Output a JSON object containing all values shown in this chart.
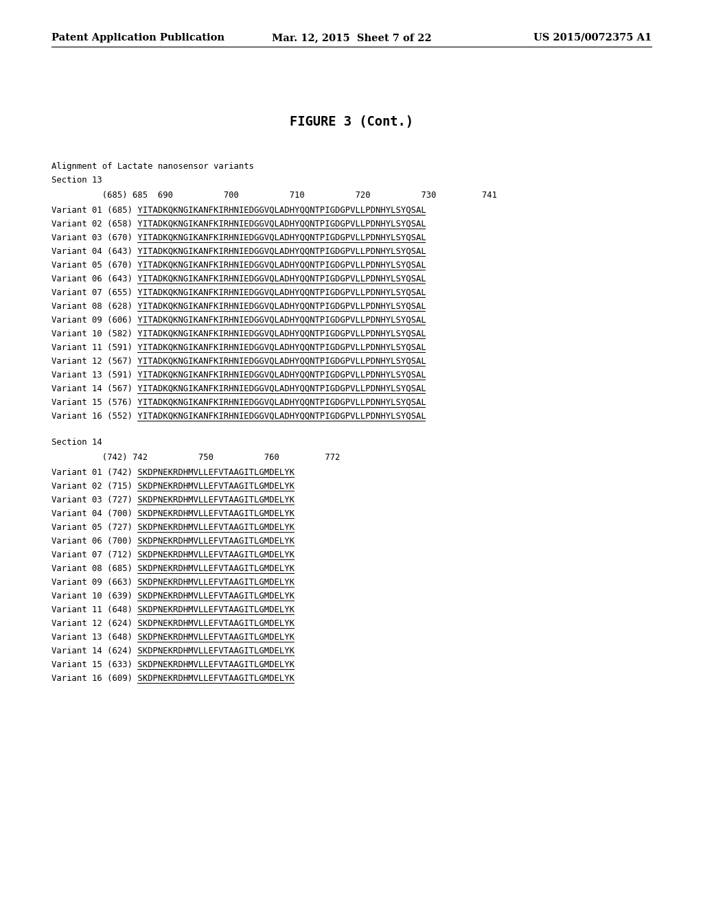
{
  "background_color": "#ffffff",
  "header_left": "Patent Application Publication",
  "header_mid": "Mar. 12, 2015  Sheet 7 of 22",
  "header_right": "US 2015/0072375 A1",
  "figure_title": "FIGURE 3 (Cont.)",
  "intro_line1": "Alignment of Lactate nanosensor variants",
  "sec13_label": "Section 13",
  "sec13_ruler": "          (685) 685  690          700          710          720          730         741",
  "sec13_variants": [
    [
      "Variant 01 (685) ",
      "YITADKQKNGIKANFKIRHNIEDGGVQLADHYQQNTPIGDGPVLLPDNHYLSYQSAL"
    ],
    [
      "Variant 02 (658) ",
      "YITADKQKNGIKANFKIRHNIEDGGVQLADHYQQNTPIGDGPVLLPDNHYLSYQSAL"
    ],
    [
      "Variant 03 (670) ",
      "YITADKQKNGIKANFKIRHNIEDGGVQLADHYQQNTPIGDGPVLLPDNHYLSYQSAL"
    ],
    [
      "Variant 04 (643) ",
      "YITADKQKNGIKANFKIRHNIEDGGVQLADHYQQNTPIGDGPVLLPDNHYLSYQSAL"
    ],
    [
      "Variant 05 (670) ",
      "YITADKQKNGIKANFKIRHNIEDGGVQLADHYQQNTPIGDGPVLLPDNHYLSYQSAL"
    ],
    [
      "Variant 06 (643) ",
      "YITADKQKNGIKANFKIRHNIEDGGVQLADHYQQNTPIGDGPVLLPDNHYLSYQSAL"
    ],
    [
      "Variant 07 (655) ",
      "YITADKQKNGIKANFKIRHNIEDGGVQLADHYQQNTPIGDGPVLLPDNHYLSYQSAL"
    ],
    [
      "Variant 08 (628) ",
      "YITADKQKNGIKANFKIRHNIEDGGVQLADHYQQNTPIGDGPVLLPDNHYLSYQSAL"
    ],
    [
      "Variant 09 (606) ",
      "YITADKQKNGIKANFKIRHNIEDGGVQLADHYQQNTPIGDGPVLLPDNHYLSYQSAL"
    ],
    [
      "Variant 10 (582) ",
      "YITADKQKNGIKANFKIRHNIEDGGVQLADHYQQNTPIGDGPVLLPDNHYLSYQSAL"
    ],
    [
      "Variant 11 (591) ",
      "YITADKQKNGIKANFKIRHNIEDGGVQLADHYQQNTPIGDGPVLLPDNHYLSYQSAL"
    ],
    [
      "Variant 12 (567) ",
      "YITADKQKNGIKANFKIRHNIEDGGVQLADHYQQNTPIGDGPVLLPDNHYLSYQSAL"
    ],
    [
      "Variant 13 (591) ",
      "YITADKQKNGIKANFKIRHNIEDGGVQLADHYQQNTPIGDGPVLLPDNHYLSYQSAL"
    ],
    [
      "Variant 14 (567) ",
      "YITADKQKNGIKANFKIRHNIEDGGVQLADHYQQNTPIGDGPVLLPDNHYLSYQSAL"
    ],
    [
      "Variant 15 (576) ",
      "YITADKQKNGIKANFKIRHNIEDGGVQLADHYQQNTPIGDGPVLLPDNHYLSYQSAL"
    ],
    [
      "Variant 16 (552) ",
      "YITADKQKNGIKANFKIRHNIEDGGVQLADHYQQNTPIGDGPVLLPDNHYLSYQSAL"
    ]
  ],
  "sec14_label": "Section 14",
  "sec14_ruler": "          (742) 742          750          760         772",
  "sec14_variants": [
    [
      "Variant 01 (742) ",
      "SKDPNEKRDHMVLLEFVTAAGITLGMDELYK"
    ],
    [
      "Variant 02 (715) ",
      "SKDPNEKRDHMVLLEFVTAAGITLGMDELYK"
    ],
    [
      "Variant 03 (727) ",
      "SKDPNEKRDHMVLLEFVTAAGITLGMDELYK"
    ],
    [
      "Variant 04 (700) ",
      "SKDPNEKRDHMVLLEFVTAAGITLGMDELYK"
    ],
    [
      "Variant 05 (727) ",
      "SKDPNEKRDHMVLLEFVTAAGITLGMDELYK"
    ],
    [
      "Variant 06 (700) ",
      "SKDPNEKRDHMVLLEFVTAAGITLGMDELYK"
    ],
    [
      "Variant 07 (712) ",
      "SKDPNEKRDHMVLLEFVTAAGITLGMDELYK"
    ],
    [
      "Variant 08 (685) ",
      "SKDPNEKRDHMVLLEFVTAAGITLGMDELYK"
    ],
    [
      "Variant 09 (663) ",
      "SKDPNEKRDHMVLLEFVTAAGITLGMDELYK"
    ],
    [
      "Variant 10 (639) ",
      "SKDPNEKRDHMVLLEFVTAAGITLGMDELYK"
    ],
    [
      "Variant 11 (648) ",
      "SKDPNEKRDHMVLLEFVTAAGITLGMDELYK"
    ],
    [
      "Variant 12 (624) ",
      "SKDPNEKRDHMVLLEFVTAAGITLGMDELYK"
    ],
    [
      "Variant 13 (648) ",
      "SKDPNEKRDHMVLLEFVTAAGITLGMDELYK"
    ],
    [
      "Variant 14 (624) ",
      "SKDPNEKRDHMVLLEFVTAAGITLGMDELYK"
    ],
    [
      "Variant 15 (633) ",
      "SKDPNEKRDHMVLLEFVTAAGITLGMDELYK"
    ],
    [
      "Variant 16 (609) ",
      "SKDPNEKRDHMVLLEFVTAAGITLGMDELYK"
    ]
  ]
}
